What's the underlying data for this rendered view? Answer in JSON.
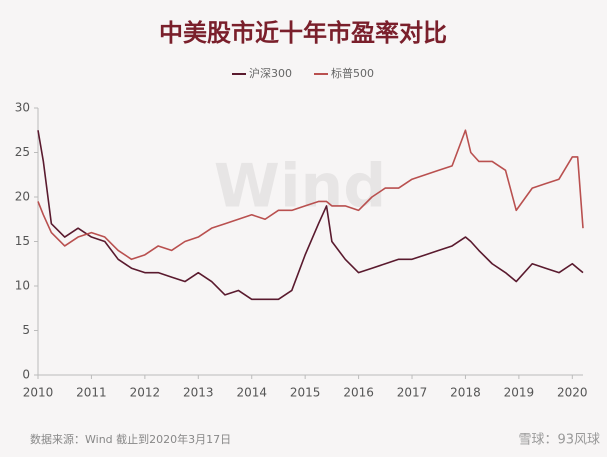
{
  "chart_data": {
    "type": "line",
    "title": "中美股市近十年市盈率对比",
    "x": [
      2010,
      2010.1,
      2010.25,
      2010.5,
      2010.75,
      2011,
      2011.25,
      2011.5,
      2011.75,
      2012,
      2012.25,
      2012.5,
      2012.75,
      2013,
      2013.25,
      2013.5,
      2013.75,
      2014,
      2014.25,
      2014.5,
      2014.75,
      2015,
      2015.25,
      2015.4,
      2015.5,
      2015.75,
      2016,
      2016.25,
      2016.5,
      2016.75,
      2017,
      2017.25,
      2017.5,
      2017.75,
      2018,
      2018.1,
      2018.25,
      2018.5,
      2018.75,
      2018.95,
      2019.25,
      2019.5,
      2019.75,
      2020,
      2020.1,
      2020.2
    ],
    "series": [
      {
        "name": "沪深300",
        "color": "#5a1a2e",
        "values": [
          27.5,
          24,
          17,
          15.5,
          16.5,
          15.5,
          15,
          13,
          12,
          11.5,
          11.5,
          11,
          10.5,
          11.5,
          10.5,
          9,
          9.5,
          8.5,
          8.5,
          8.5,
          9.5,
          13.5,
          17,
          19,
          15,
          13,
          11.5,
          12,
          12.5,
          13,
          13,
          13.5,
          14,
          14.5,
          15.5,
          15,
          14,
          12.5,
          11.5,
          10.5,
          12.5,
          12,
          11.5,
          12.5,
          12,
          11.5
        ]
      },
      {
        "name": "标普500",
        "color": "#b9504f",
        "values": [
          19.5,
          18,
          16,
          14.5,
          15.5,
          16,
          15.5,
          14,
          13,
          13.5,
          14.5,
          14,
          15,
          15.5,
          16.5,
          17,
          17.5,
          18,
          17.5,
          18.5,
          18.5,
          19,
          19.5,
          19.5,
          19,
          19,
          18.5,
          20,
          21,
          21,
          22,
          22.5,
          23,
          23.5,
          27.5,
          25,
          24,
          24,
          23,
          18.5,
          21,
          21.5,
          22,
          24.5,
          24.5,
          16.5
        ]
      }
    ],
    "xlim": [
      2010,
      2020.2
    ],
    "xticks": [
      2010,
      2011,
      2012,
      2013,
      2014,
      2015,
      2016,
      2017,
      2018,
      2019,
      2020
    ],
    "ylim": [
      0,
      30
    ],
    "yticks": [
      0,
      5,
      10,
      15,
      20,
      25,
      30
    ],
    "watermark": "Wind",
    "source": "数据来源：Wind  截止到2020年3月17日",
    "credit": "雪球：93风球"
  }
}
